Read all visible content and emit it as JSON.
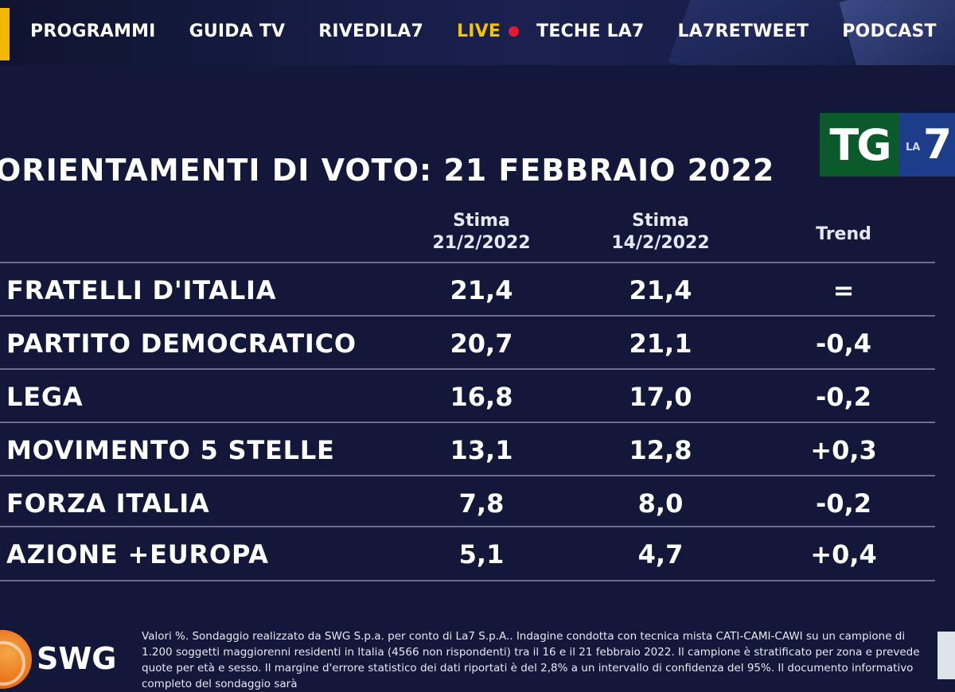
{
  "nav": {
    "items": [
      {
        "label": "PROGRAMMI"
      },
      {
        "label": "GUIDA TV"
      },
      {
        "label": "RIVEDILA7"
      }
    ],
    "live_label": "LIVE",
    "items_after": [
      {
        "label": "TECHE LA7"
      },
      {
        "label": "LA7RETWEET"
      },
      {
        "label": "PODCAST"
      }
    ]
  },
  "logo": {
    "tg": "TG",
    "la": "LA",
    "seven": "7"
  },
  "title": "ORIENTAMENTI DI VOTO: 21 FEBBRAIO 2022",
  "table": {
    "headers": {
      "col1_line1": "Stima",
      "col1_line2": "21/2/2022",
      "col2_line1": "Stima",
      "col2_line2": "14/2/2022",
      "col3": "Trend"
    },
    "rows": [
      {
        "party": "FRATELLI D'ITALIA",
        "current": "21,4",
        "previous": "21,4",
        "trend": "="
      },
      {
        "party": "PARTITO DEMOCRATICO",
        "current": "20,7",
        "previous": "21,1",
        "trend": "-0,4"
      },
      {
        "party": "LEGA",
        "current": "16,8",
        "previous": "17,0",
        "trend": "-0,2"
      },
      {
        "party": "MOVIMENTO 5 STELLE",
        "current": "13,1",
        "previous": "12,8",
        "trend": "+0,3"
      },
      {
        "party": "FORZA ITALIA",
        "current": "7,8",
        "previous": "8,0",
        "trend": "-0,2"
      },
      {
        "party": "AZIONE +EUROPA",
        "current": "5,1",
        "previous": "4,7",
        "trend": "+0,4"
      }
    ]
  },
  "footer": {
    "brand": "SWG",
    "note": "Valori %. Sondaggio realizzato da SWG S.p.a. per conto di La7 S.p.A.. Indagine condotta con tecnica mista CATI-CAMI-CAWI su un campione di 1.200 soggetti maggiorenni residenti in Italia (4566 non rispondenti) tra il 16 e il 21 febbraio 2022. Il campione è stratificato per zona e prevede quote per età e sesso. Il margine d'errore statistico dei dati riportati è del 2,8% a un intervallo di confidenza del 95%. Il documento informativo completo del sondaggio sarà"
  },
  "colors": {
    "background": "#13183a",
    "live": "#f5c400",
    "live_dot": "#e8172b",
    "accent_bar": "#f5b800",
    "logo_green": "#0c5a2c",
    "logo_blue": "#1d3d8a"
  }
}
